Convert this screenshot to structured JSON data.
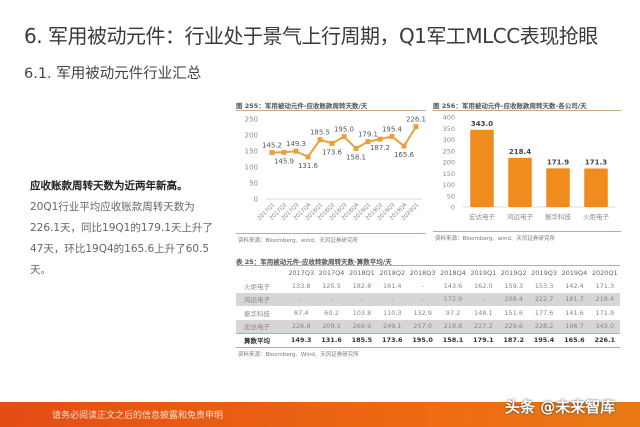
{
  "header": {
    "title": "6. 军用被动元件：行业处于景气上行周期，Q1军工MLCC表现抢眼",
    "subtitle": "6.1. 军用被动元件行业汇总"
  },
  "summary": {
    "bold": "应收账款周转天数为近两年新高。",
    "text": "20Q1行业平均应收账款周转天数为226.1天，同比19Q1的179.1天上升了47天，环比19Q4的165.6上升了60.5天。"
  },
  "chart_data": [
    {
      "type": "line",
      "title": "图 255：军用被动元件-应收账款周转天数/天",
      "categories": [
        "2017Q1",
        "2017Q2",
        "2017Q3",
        "2017Q4",
        "2018Q1",
        "2018Q2",
        "2018Q3",
        "2018Q4",
        "2019Q1",
        "2019Q2",
        "2019Q3",
        "2019Q4",
        "2020Q1"
      ],
      "values": [
        145.2,
        145.9,
        149.3,
        131.6,
        185.5,
        173.6,
        195.0,
        158.1,
        179.1,
        187.2,
        195.4,
        165.6,
        226.1
      ],
      "ylim": [
        0,
        250
      ],
      "yticks": [
        0,
        50,
        100,
        150,
        200,
        250
      ],
      "color": "#e8a13a",
      "source": "资料来源：Bloomberg、wind、天风证券研究所"
    },
    {
      "type": "bar",
      "title": "图 256：军用被动元件-应收账款周转天数-各公司/天",
      "categories": [
        "宏达电子",
        "鸿远电子",
        "振华科技",
        "火炬电子"
      ],
      "values": [
        343.0,
        218.4,
        171.9,
        171.3
      ],
      "ylim": [
        0,
        400
      ],
      "yticks": [
        0,
        50,
        100,
        150,
        200,
        250,
        300,
        350,
        400
      ],
      "color": "#f08c1e",
      "source": "资料来源：Bloomberg、wind、天风证券研究所"
    }
  ],
  "table": {
    "title": "表 25：军用被动元件-应收转款周转天数-算数平均/天",
    "columns": [
      "",
      "2017Q3",
      "2017Q4",
      "2018Q1",
      "2018Q2",
      "2018Q3",
      "2018Q4",
      "2019Q1",
      "2019Q2",
      "2019Q3",
      "2019Q4",
      "2020Q1"
    ],
    "rows": [
      [
        "火炬电子",
        "133.8",
        "125.5",
        "182.8",
        "161.4",
        "-",
        "143.6",
        "162.0",
        "159.3",
        "153.3",
        "142.4",
        "171.3"
      ],
      [
        "鸿远电子",
        "-",
        "-",
        "-",
        "-",
        "-",
        "172.9",
        "-",
        "208.4",
        "222.7",
        "181.7",
        "218.4"
      ],
      [
        "振华科技",
        "87.4",
        "60.2",
        "103.8",
        "110.3",
        "132.9",
        "97.2",
        "148.1",
        "151.6",
        "177.6",
        "141.6",
        "171.9"
      ],
      [
        "宏达电子",
        "226.8",
        "209.1",
        "269.9",
        "249.1",
        "257.0",
        "218.8",
        "227.2",
        "229.6",
        "228.2",
        "196.7",
        "343.0"
      ],
      [
        "算数平均",
        "149.3",
        "131.6",
        "185.5",
        "173.6",
        "195.0",
        "158.1",
        "179.1",
        "187.2",
        "195.4",
        "165.6",
        "226.1"
      ]
    ],
    "source": "资料来源：Bloomberg、Wind、天风证券研究所"
  },
  "footer": {
    "disclaimer": "请务必阅读正文之后的信息披露和免责申明",
    "watermark": "头条 @未来智库"
  }
}
